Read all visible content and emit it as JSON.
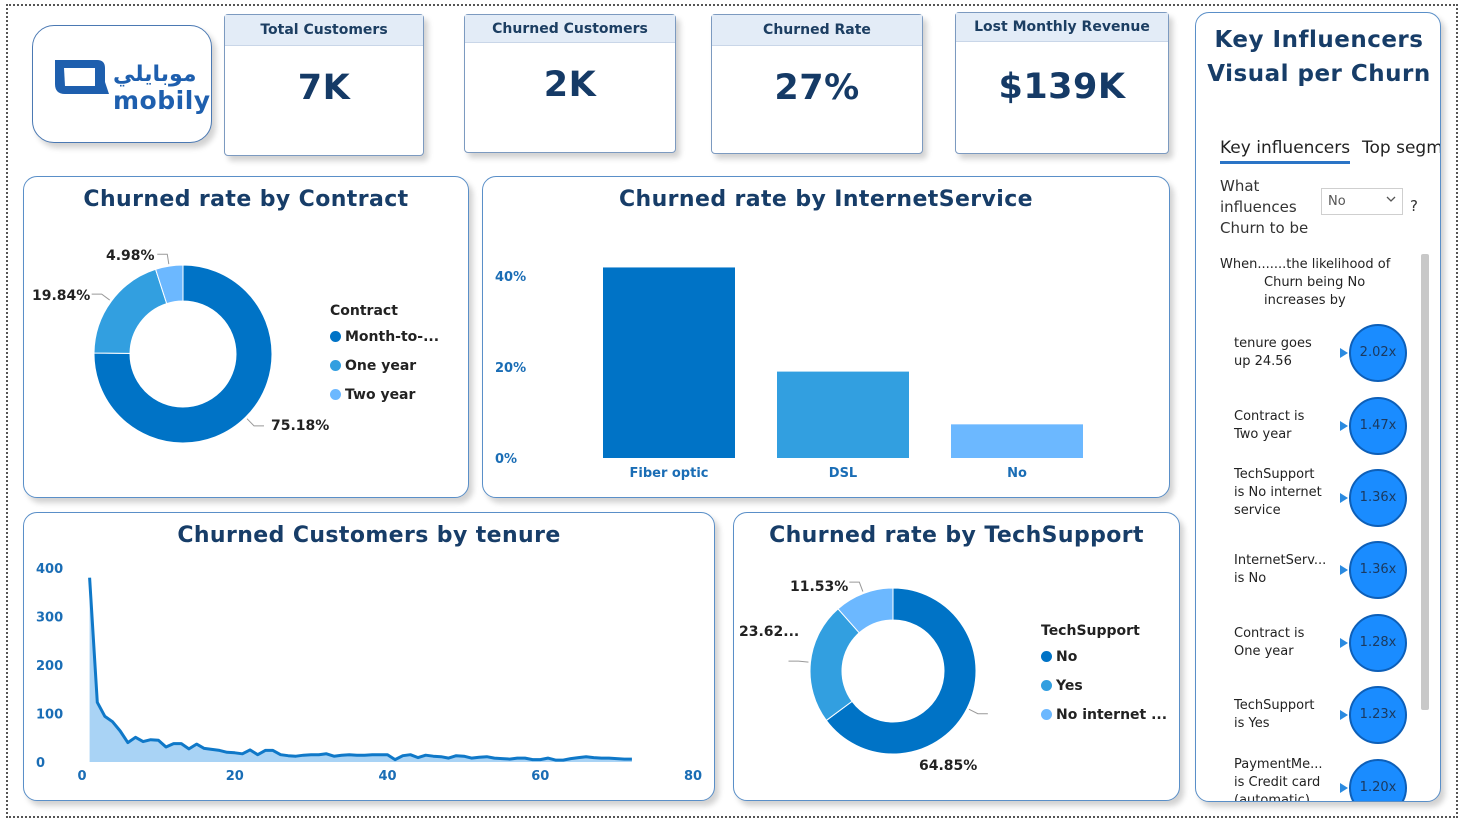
{
  "brand": {
    "name_ar": "موبايلي",
    "name_en": "mobily"
  },
  "kpis": [
    {
      "label": "Total Customers",
      "value": "7K"
    },
    {
      "label": "Churned Customers",
      "value": "2K"
    },
    {
      "label": "Churned Rate",
      "value": "27%"
    },
    {
      "label": "Lost Monthly Revenue",
      "value": "$139K"
    }
  ],
  "colors": {
    "dark_blue": "#0073c6",
    "mid_blue": "#329fe0",
    "light_blue": "#6cb8ff",
    "title": "#173d68"
  },
  "chart_data": [
    {
      "type": "pie",
      "title": "Churned rate by Contract",
      "legend_title": "Contract",
      "legend_position": "right",
      "categories": [
        "Month-to-...",
        "One year",
        "Two year"
      ],
      "values": [
        75.18,
        19.84,
        4.98
      ],
      "labels": [
        "75.18%",
        "19.84%",
        "4.98%"
      ],
      "donut": true
    },
    {
      "type": "bar",
      "title": "Churned rate by InternetService",
      "categories": [
        "Fiber optic",
        "DSL",
        "No"
      ],
      "values": [
        0.419,
        0.19,
        0.074
      ],
      "yticks": [
        "0%",
        "20%",
        "40%"
      ],
      "ylim": [
        0,
        0.42
      ],
      "grid": false
    },
    {
      "type": "area",
      "title": "Churned Customers by tenure",
      "xticks": [
        "0",
        "20",
        "40",
        "60",
        "80"
      ],
      "yticks": [
        "0",
        "100",
        "200",
        "300",
        "400"
      ],
      "xlim": [
        0,
        80
      ],
      "ylim": [
        0,
        400
      ],
      "grid": false,
      "x": [
        1,
        2,
        3,
        4,
        5,
        6,
        7,
        8,
        9,
        10,
        11,
        12,
        13,
        14,
        15,
        16,
        17,
        18,
        19,
        20,
        21,
        22,
        23,
        24,
        25,
        26,
        27,
        28,
        29,
        30,
        31,
        32,
        33,
        34,
        35,
        36,
        37,
        38,
        39,
        40,
        41,
        42,
        43,
        44,
        45,
        46,
        47,
        48,
        49,
        50,
        51,
        52,
        53,
        54,
        55,
        56,
        57,
        58,
        59,
        60,
        61,
        62,
        63,
        64,
        65,
        66,
        67,
        68,
        69,
        70,
        71,
        72
      ],
      "y": [
        380,
        123,
        94,
        83,
        64,
        40,
        51,
        42,
        46,
        45,
        31,
        38,
        38,
        27,
        37,
        28,
        26,
        24,
        20,
        19,
        17,
        25,
        15,
        24,
        24,
        15,
        13,
        12,
        14,
        15,
        15,
        17,
        12,
        14,
        15,
        14,
        14,
        15,
        15,
        15,
        5,
        13,
        15,
        9,
        14,
        12,
        11,
        8,
        13,
        12,
        8,
        10,
        11,
        8,
        7,
        6,
        8,
        8,
        5,
        5,
        8,
        4,
        4,
        7,
        9,
        11,
        9,
        8,
        8,
        7,
        6,
        6
      ]
    },
    {
      "type": "pie",
      "title": "Churned rate by TechSupport",
      "legend_title": "TechSupport",
      "legend_position": "right",
      "categories": [
        "No",
        "Yes",
        "No internet ..."
      ],
      "values": [
        64.85,
        23.62,
        11.53
      ],
      "labels": [
        "64.85%",
        "23.62...",
        "11.53%"
      ],
      "donut": true
    }
  ],
  "key_influencers": {
    "title_line1": "Key Influencers",
    "title_line2": "Visual per Churn",
    "tabs": [
      "Key influencers",
      "Top segm"
    ],
    "question_lines": [
      "What",
      "influences",
      "Churn to be"
    ],
    "dropdown_value": "No",
    "qmark": "?",
    "header_lines": [
      "When.......the likelihood of",
      "Churn being No",
      "increases by"
    ],
    "items": [
      {
        "line1": "tenure goes",
        "line2": "up 24.56",
        "line3": "",
        "factor": "2.02x"
      },
      {
        "line1": "Contract is",
        "line2": "Two year",
        "line3": "",
        "factor": "1.47x"
      },
      {
        "line1": "TechSupport",
        "line2": "is No internet",
        "line3": "service",
        "factor": "1.36x"
      },
      {
        "line1": "InternetServ...",
        "line2": "is No",
        "line3": "",
        "factor": "1.36x"
      },
      {
        "line1": "Contract is",
        "line2": "One year",
        "line3": "",
        "factor": "1.28x"
      },
      {
        "line1": "TechSupport",
        "line2": "is Yes",
        "line3": "",
        "factor": "1.23x"
      },
      {
        "line1": "PaymentMe...",
        "line2": "is Credit card",
        "line3": "(automatic)",
        "factor": "1.20x"
      }
    ]
  }
}
